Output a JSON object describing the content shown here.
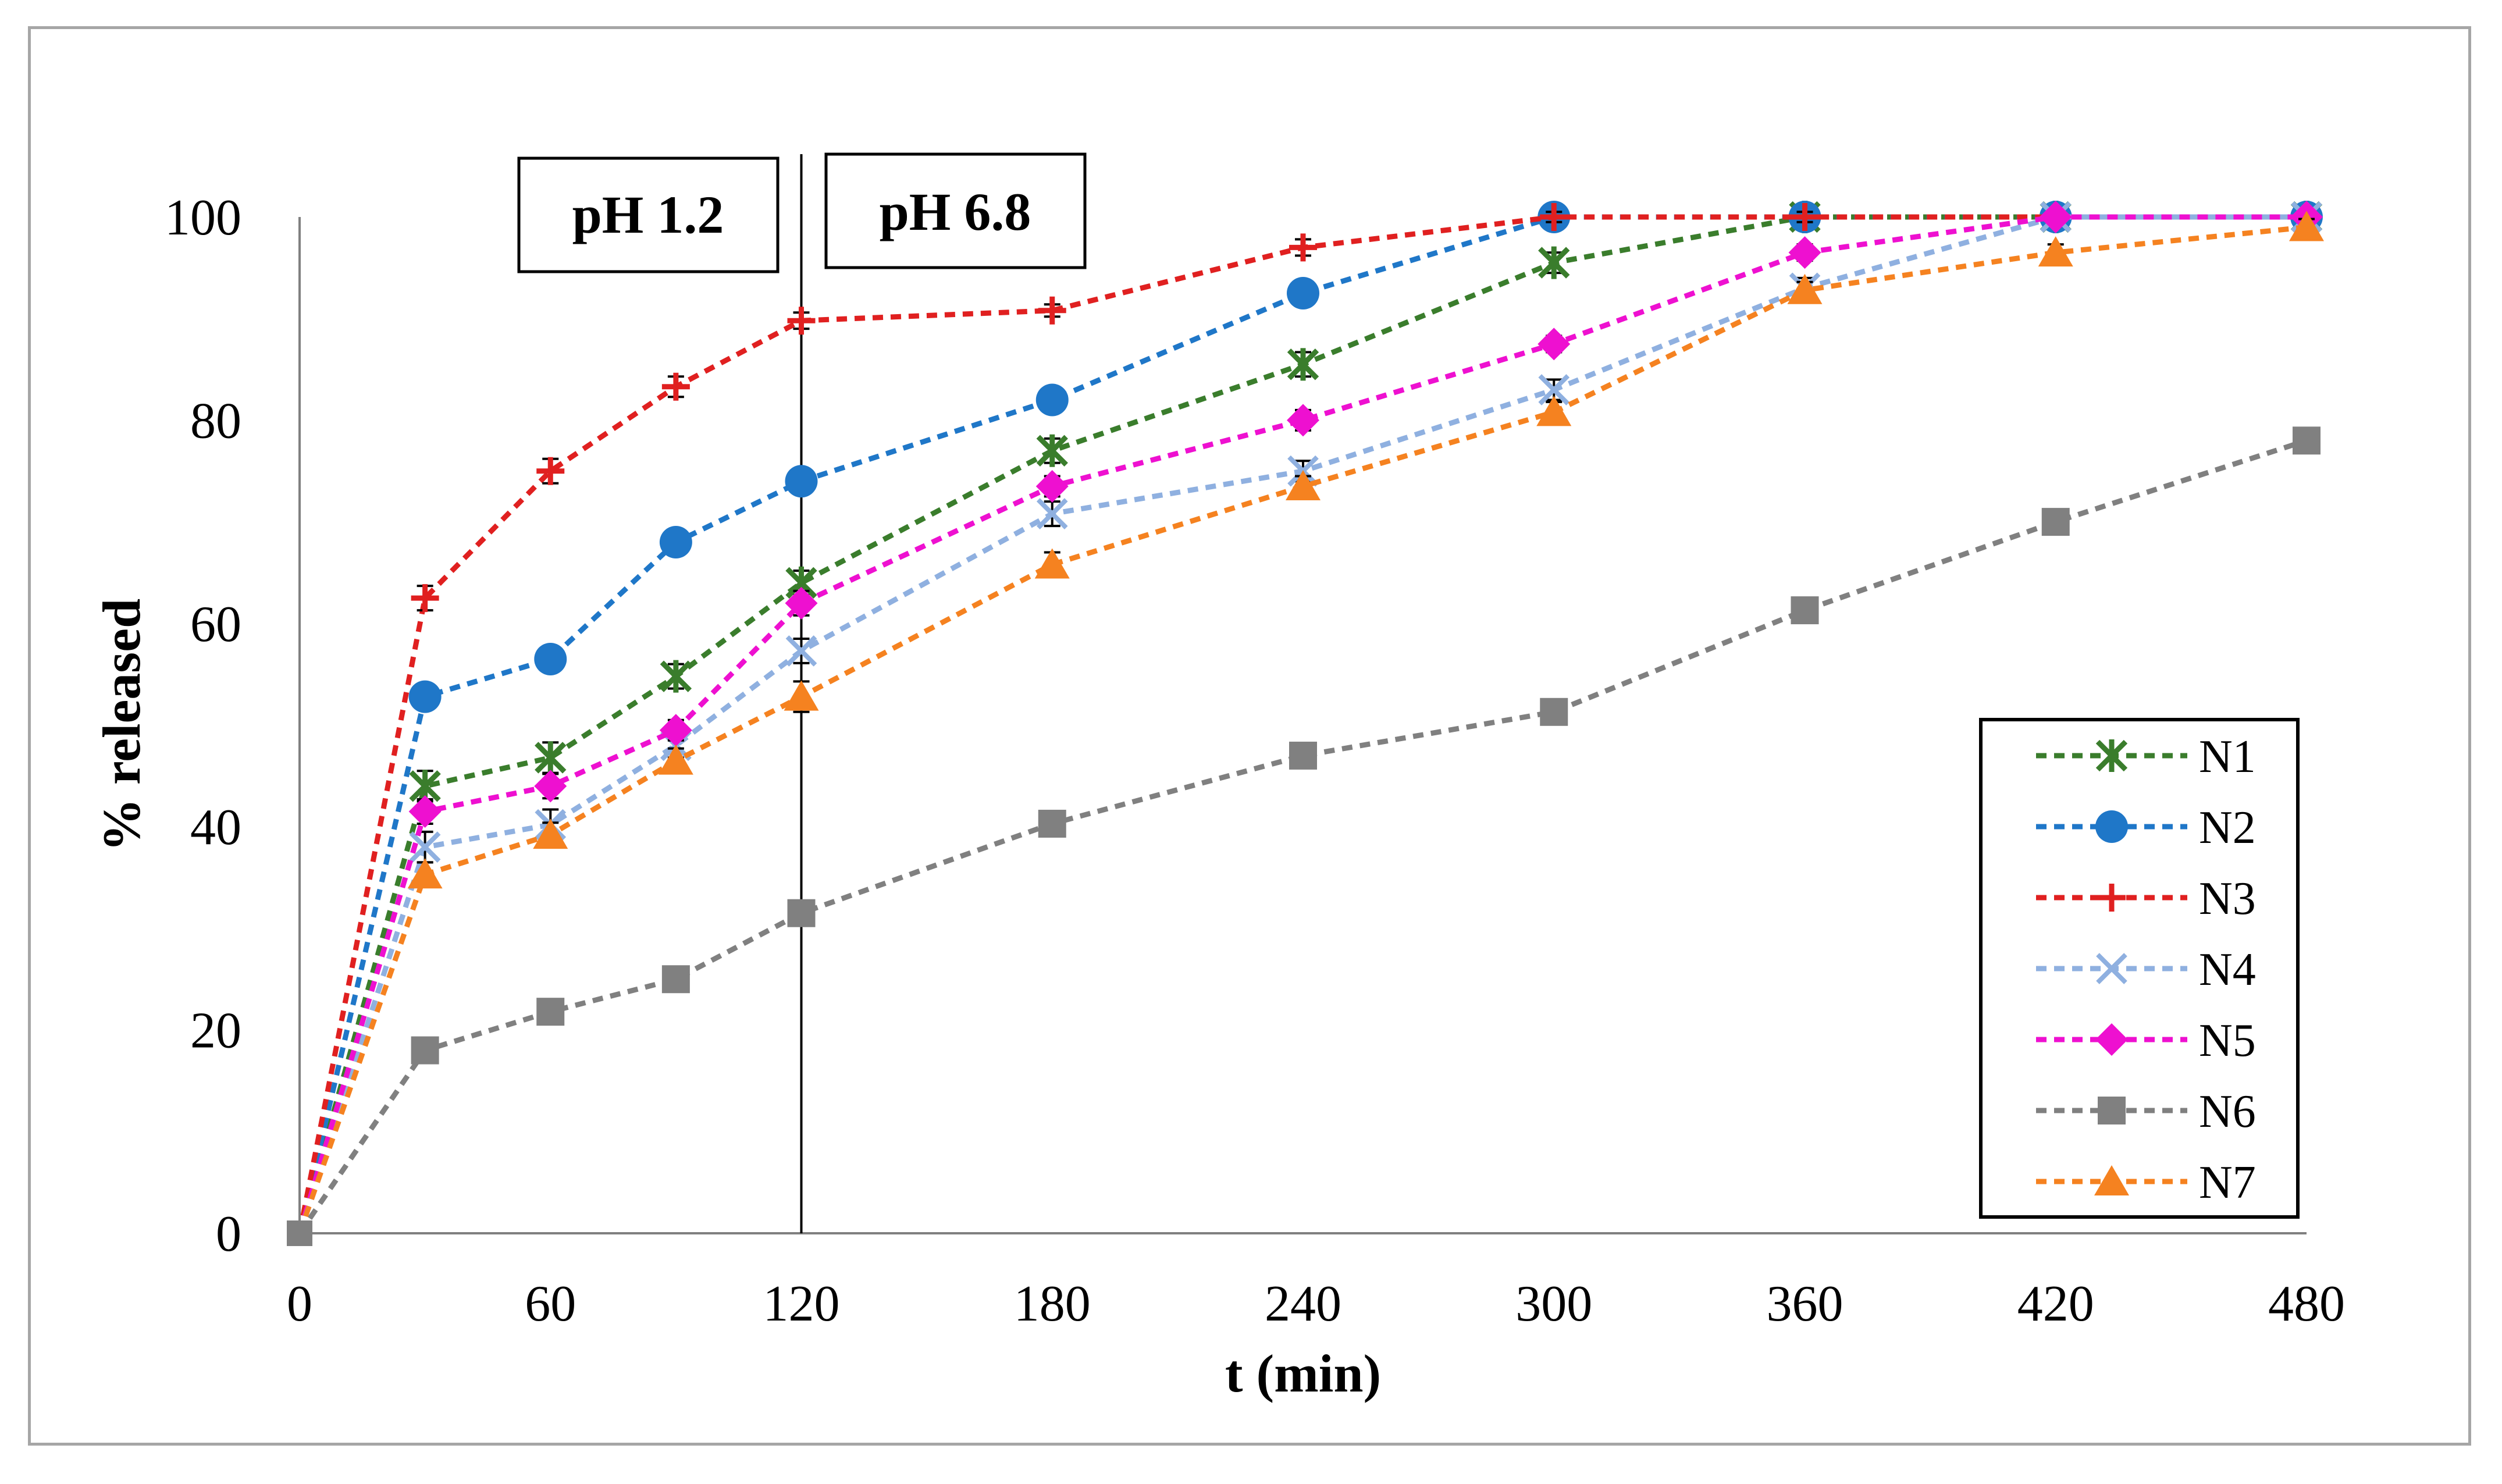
{
  "chart_data": {
    "type": "line",
    "title": "",
    "xlabel": "t (min)",
    "ylabel": "% released",
    "xlim": [
      0,
      480
    ],
    "ylim": [
      0,
      100
    ],
    "xticks": [
      "0",
      "60",
      "120",
      "180",
      "240",
      "300",
      "360",
      "420",
      "480"
    ],
    "yticks": [
      "0",
      "20",
      "40",
      "60",
      "80",
      "100"
    ],
    "grid": false,
    "legend_position": "bottom-right",
    "annotations": [
      {
        "text": "pH 1.2",
        "region": "before 120 min"
      },
      {
        "text": "pH 6.8",
        "region": "after 120 min"
      }
    ],
    "divider_x": 120,
    "x": [
      0,
      30,
      60,
      90,
      120,
      180,
      240,
      300,
      360,
      420,
      480
    ],
    "series": [
      {
        "name": "N1",
        "color": "#3a7d2c",
        "marker": "asterisk",
        "values": [
          0,
          44,
          46.8,
          54.8,
          64,
          77,
          85.5,
          95.5,
          100,
          100,
          100
        ],
        "errors": [
          0,
          1.5,
          1.5,
          1.2,
          1.2,
          1.2,
          1.2,
          1.0,
          0.5,
          0.5,
          0.5
        ]
      },
      {
        "name": "N2",
        "color": "#1f77c8",
        "marker": "circle",
        "values": [
          0,
          52.8,
          56.5,
          68,
          74,
          82,
          92.5,
          100,
          100,
          100,
          100
        ],
        "errors": [
          0,
          0.8,
          0.8,
          0.8,
          0.8,
          0.8,
          0.8,
          0.5,
          0.5,
          0.5,
          0.5
        ]
      },
      {
        "name": "N3",
        "color": "#e02020",
        "marker": "plus",
        "values": [
          0,
          62.5,
          75,
          83.3,
          89.8,
          90.8,
          97,
          100,
          100,
          100,
          100
        ],
        "errors": [
          0,
          1.2,
          1.2,
          1.0,
          0.8,
          0.6,
          0.8,
          0.5,
          0.5,
          0.5,
          0.5
        ]
      },
      {
        "name": "N4",
        "color": "#8fb0e0",
        "marker": "x",
        "values": [
          0,
          38,
          40.2,
          48,
          57.3,
          70.8,
          75,
          83,
          93,
          100,
          100
        ],
        "errors": [
          0,
          1.5,
          1.5,
          1.2,
          1.2,
          1.2,
          1.0,
          1.0,
          1.0,
          0.5,
          0.5
        ]
      },
      {
        "name": "N5",
        "color": "#ee10d0",
        "marker": "diamond",
        "values": [
          0,
          41.5,
          44,
          49.5,
          62,
          73.5,
          80,
          87.5,
          96.5,
          100,
          100
        ],
        "errors": [
          0,
          1.2,
          1.2,
          1.0,
          1.2,
          1.0,
          1.0,
          0.8,
          0.8,
          0.5,
          0.5
        ]
      },
      {
        "name": "N6",
        "color": "#808080",
        "marker": "square",
        "values": [
          0,
          18,
          21.8,
          25,
          31.5,
          40.3,
          47,
          51.3,
          61.3,
          70,
          78
        ],
        "errors": [
          0,
          0.8,
          0.8,
          0.8,
          0.8,
          0.8,
          0.8,
          0.8,
          0.8,
          0.8,
          0.8
        ]
      },
      {
        "name": "N7",
        "color": "#f58220",
        "marker": "triangle",
        "values": [
          0,
          35.3,
          39.2,
          46.5,
          52.8,
          65.8,
          73.5,
          80.8,
          92.8,
          96.5,
          99
        ],
        "errors": [
          0,
          1.2,
          1.2,
          1.2,
          1.5,
          1.2,
          1.0,
          1.0,
          0.8,
          0.8,
          0.8
        ]
      }
    ]
  }
}
